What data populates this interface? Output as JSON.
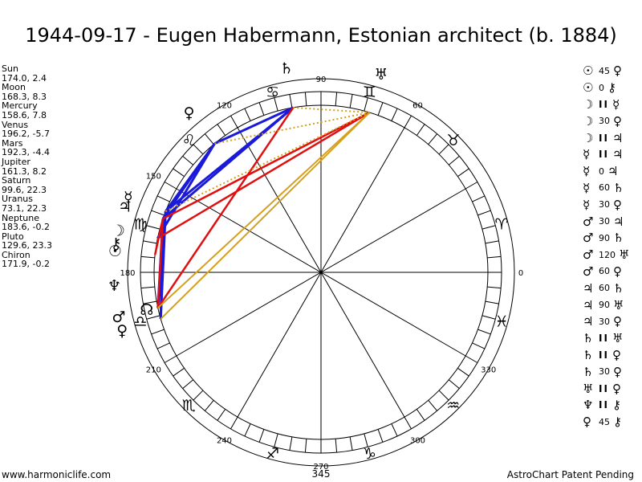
{
  "title": "1944-09-17 - Eugen Habermann, Estonian architect (b. 1884)",
  "planets": [
    {
      "name": "Sun",
      "pos": "174.0, 2.4",
      "glyph": "☉",
      "lon": 174.0
    },
    {
      "name": "Moon",
      "pos": "168.3, 8.3",
      "glyph": "☽",
      "lon": 168.3
    },
    {
      "name": "Mercury",
      "pos": "158.6, 7.8",
      "glyph": "☿",
      "lon": 158.6
    },
    {
      "name": "Venus",
      "pos": "196.2, -5.7",
      "glyph": "♀",
      "lon": 196.2
    },
    {
      "name": "Mars",
      "pos": "192.3, -4.4",
      "glyph": "♂",
      "lon": 192.3
    },
    {
      "name": "Jupiter",
      "pos": "161.3, 8.2",
      "glyph": "♃",
      "lon": 161.3
    },
    {
      "name": "Saturn",
      "pos": "99.6, 22.3",
      "glyph": "♄",
      "lon": 99.6
    },
    {
      "name": "Uranus",
      "pos": "73.1, 22.3",
      "glyph": "♅",
      "lon": 73.1
    },
    {
      "name": "Neptune",
      "pos": "183.6, -0.2",
      "glyph": "♆",
      "lon": 183.6
    },
    {
      "name": "Pluto",
      "pos": "129.6, 23.3",
      "glyph": "♀",
      "lon": 129.6
    },
    {
      "name": "Chiron",
      "pos": "171.9, -0.2",
      "glyph": "⚷",
      "lon": 171.9
    }
  ],
  "extra_points": [
    {
      "glyph": "☊",
      "lon": 192.0
    }
  ],
  "signs": [
    "♈",
    "♉",
    "♊",
    "♋",
    "♌",
    "♍",
    "♎",
    "♏",
    "♐",
    "♑",
    "♒",
    "♓"
  ],
  "degree_labels": [
    {
      "text": "0",
      "deg": 0
    },
    {
      "text": "60",
      "deg": 60
    },
    {
      "text": "90",
      "deg": 90
    },
    {
      "text": "120",
      "deg": 120
    },
    {
      "text": "150",
      "deg": 150
    },
    {
      "text": "180",
      "deg": 180
    },
    {
      "text": "210",
      "deg": 210
    },
    {
      "text": "240",
      "deg": 240
    },
    {
      "text": "270",
      "deg": 270
    },
    {
      "text": "300",
      "deg": 300
    },
    {
      "text": "330",
      "deg": 330
    }
  ],
  "bottom_value": "345",
  "aspect_lines": [
    {
      "a": "Saturn",
      "b": "Pluto",
      "type": "blue"
    },
    {
      "a": "Saturn",
      "b": "Mercury",
      "type": "blue"
    },
    {
      "a": "Saturn",
      "b": "Jupiter",
      "type": "blue"
    },
    {
      "a": "Pluto",
      "b": "Jupiter",
      "type": "blue"
    },
    {
      "a": "Pluto",
      "b": "Mercury",
      "type": "blue"
    },
    {
      "a": "Pluto",
      "b": "Moon",
      "type": "blue"
    },
    {
      "a": "Mercury",
      "b": "Venus",
      "type": "blue"
    },
    {
      "a": "Jupiter",
      "b": "Venus",
      "type": "blue"
    },
    {
      "a": "Mercury",
      "b": "Mars",
      "type": "blue"
    },
    {
      "a": "Jupiter",
      "b": "Mars",
      "type": "blue"
    },
    {
      "a": "Saturn",
      "b": "Mars",
      "type": "red"
    },
    {
      "a": "Uranus",
      "b": "Jupiter",
      "type": "red"
    },
    {
      "a": "Uranus",
      "b": "Moon",
      "type": "red"
    },
    {
      "a": "Jupiter",
      "b": "Sun",
      "type": "red"
    },
    {
      "a": "Mars",
      "b": "Jupiter",
      "type": "red"
    },
    {
      "a": "Uranus",
      "b": "Mars",
      "type": "gold"
    },
    {
      "a": "Uranus",
      "b": "Venus",
      "type": "gold"
    },
    {
      "a": "Saturn",
      "b": "Uranus",
      "type": "dotted"
    },
    {
      "a": "Pluto",
      "b": "Uranus",
      "type": "dotted"
    },
    {
      "a": "Mercury",
      "b": "Uranus",
      "type": "dotted"
    }
  ],
  "colors": {
    "blue": "#1a1ad8",
    "red": "#e01010",
    "gold": "#d4a020",
    "dotted": "#d4a020"
  },
  "aspects": [
    {
      "p1": "☉",
      "asp": "45",
      "p2": "♀"
    },
    {
      "p1": "☉",
      "asp": "0",
      "p2": "⚷"
    },
    {
      "p1": "☽",
      "asp": "II",
      "p2": "☿"
    },
    {
      "p1": "☽",
      "asp": "30",
      "p2": "♀"
    },
    {
      "p1": "☽",
      "asp": "II",
      "p2": "♃"
    },
    {
      "p1": "☿",
      "asp": "II",
      "p2": "♃"
    },
    {
      "p1": "☿",
      "asp": "0",
      "p2": "♃"
    },
    {
      "p1": "☿",
      "asp": "60",
      "p2": "♄"
    },
    {
      "p1": "☿",
      "asp": "30",
      "p2": "♀"
    },
    {
      "p1": "♂",
      "asp": "30",
      "p2": "♃"
    },
    {
      "p1": "♂",
      "asp": "90",
      "p2": "♄"
    },
    {
      "p1": "♂",
      "asp": "120",
      "p2": "♅"
    },
    {
      "p1": "♂",
      "asp": "60",
      "p2": "♀"
    },
    {
      "p1": "♃",
      "asp": "60",
      "p2": "♄"
    },
    {
      "p1": "♃",
      "asp": "90",
      "p2": "♅"
    },
    {
      "p1": "♃",
      "asp": "30",
      "p2": "♀"
    },
    {
      "p1": "♄",
      "asp": "II",
      "p2": "♅"
    },
    {
      "p1": "♄",
      "asp": "II",
      "p2": "♀"
    },
    {
      "p1": "♄",
      "asp": "30",
      "p2": "♀"
    },
    {
      "p1": "♅",
      "asp": "II",
      "p2": "♀"
    },
    {
      "p1": "♆",
      "asp": "II",
      "p2": "⚷"
    },
    {
      "p1": "♀",
      "asp": "45",
      "p2": "⚷"
    }
  ],
  "footer": {
    "left": "www.harmoniclife.com",
    "right": "AstroChart Patent Pending"
  }
}
